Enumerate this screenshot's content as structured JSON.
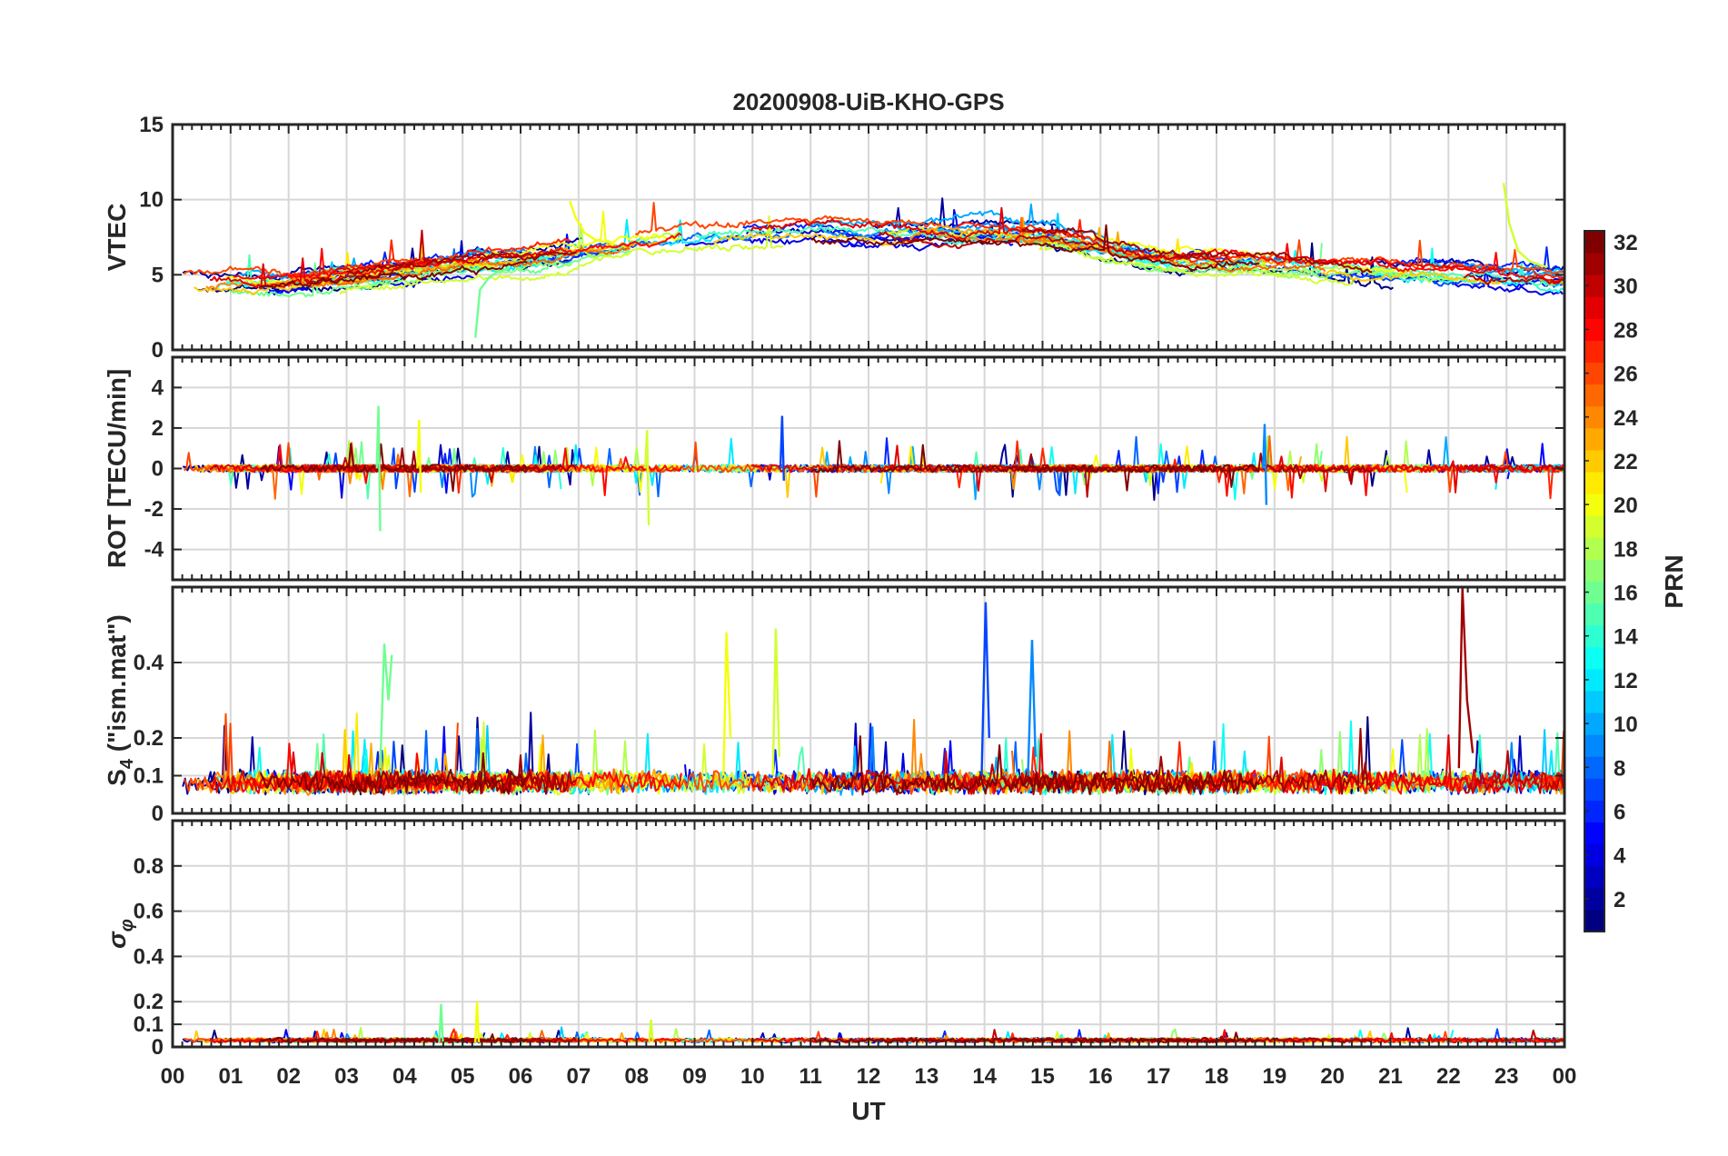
{
  "chart_data": {
    "type": "line",
    "title": "20200908-UiB-KHO-GPS",
    "xlabel": "UT",
    "x_ticks": [
      "00",
      "01",
      "02",
      "03",
      "04",
      "05",
      "06",
      "07",
      "08",
      "09",
      "10",
      "11",
      "12",
      "13",
      "14",
      "15",
      "16",
      "17",
      "18",
      "19",
      "20",
      "21",
      "22",
      "23",
      "00"
    ],
    "xlim": [
      0,
      24
    ],
    "grid": true,
    "panels": [
      {
        "name": "vtec",
        "ylabel": "VTEC",
        "ylim": [
          0,
          15
        ],
        "y_ticks": [
          0,
          5,
          10,
          15
        ],
        "y_tick_labels": [
          "0",
          "5",
          "10",
          "15"
        ],
        "profile": [
          [
            0,
            4.4
          ],
          [
            2,
            4.3
          ],
          [
            4,
            5.1
          ],
          [
            6,
            5.9
          ],
          [
            8,
            7.0
          ],
          [
            10,
            7.6
          ],
          [
            12,
            7.5
          ],
          [
            14,
            7.6
          ],
          [
            15,
            7.4
          ],
          [
            17,
            5.9
          ],
          [
            19,
            5.6
          ],
          [
            21,
            5.0
          ],
          [
            24,
            4.4
          ]
        ],
        "noise": 0.5,
        "spike_rate": 0.005,
        "spike_amp": 1.4,
        "annotations": [
          {
            "note": "PRN 16 arc rising from 0.8 at 05:15",
            "x": [
              5.22,
              5.3,
              5.45,
              5.6,
              5.8
            ],
            "y": [
              0.8,
              4.0,
              4.8,
              5.2,
              5.4
            ]
          },
          {
            "note": "PRN 20 arc starting near 9.9 at 06:50",
            "x": [
              6.85,
              6.95,
              7.1,
              7.3,
              7.6
            ],
            "y": [
              9.9,
              8.8,
              7.8,
              7.3,
              7.1
            ]
          },
          {
            "note": "PRN 19 arc starting near 11.1 at 22:55",
            "x": [
              22.95,
              23.05,
              23.2,
              23.4,
              23.7
            ],
            "y": [
              11.1,
              8.4,
              6.6,
              5.9,
              5.5
            ]
          }
        ]
      },
      {
        "name": "rot",
        "ylabel": "ROT [TECU/min]",
        "ylim": [
          -5.5,
          5.5
        ],
        "y_ticks": [
          -4,
          -2,
          0,
          2,
          4
        ],
        "y_tick_labels": [
          "-4",
          "-2",
          "0",
          "2",
          "4"
        ],
        "profile": [
          [
            0,
            0
          ],
          [
            24,
            0
          ]
        ],
        "noise": 0.18,
        "spike_rate": 0.02,
        "spike_amp": 1.0,
        "annotations": [
          {
            "note": "spike near 03:35",
            "x": [
              3.52,
              3.55,
              3.58
            ],
            "y": [
              0,
              3.1,
              -3.1
            ]
          },
          {
            "note": "spike near 04:25",
            "x": [
              4.22,
              4.25,
              4.28
            ],
            "y": [
              0,
              2.4,
              -1.2
            ]
          },
          {
            "note": "spike near 08:20",
            "x": [
              8.15,
              8.18,
              8.21
            ],
            "y": [
              0,
              1.9,
              -2.8
            ]
          },
          {
            "note": "spike near 10:30",
            "x": [
              10.48,
              10.51,
              10.54
            ],
            "y": [
              0,
              2.6,
              -0.6
            ]
          },
          {
            "note": "spike near 18:50",
            "x": [
              18.8,
              18.83,
              18.86
            ],
            "y": [
              0,
              2.2,
              -1.8
            ]
          }
        ]
      },
      {
        "name": "s4",
        "ylabel": "S4 (\"ism.mat\")",
        "ylim": [
          0,
          0.6
        ],
        "y_ticks": [
          0,
          0.1,
          0.2,
          0.4
        ],
        "y_tick_labels": [
          "0",
          "0.1",
          "0.2",
          "0.4"
        ],
        "profile": [
          [
            0,
            0.08
          ],
          [
            24,
            0.08
          ]
        ],
        "noise": 0.03,
        "spike_rate": 0.012,
        "spike_amp": 0.11,
        "annotations": [
          {
            "note": "burst near 03:40",
            "x": [
              3.58,
              3.65,
              3.72,
              3.78
            ],
            "y": [
              0.12,
              0.45,
              0.3,
              0.42
            ]
          },
          {
            "note": "burst near 09:35",
            "x": [
              9.5,
              9.55,
              9.62
            ],
            "y": [
              0.1,
              0.48,
              0.2
            ]
          },
          {
            "note": "burst near 10:25",
            "x": [
              10.35,
              10.4,
              10.46
            ],
            "y": [
              0.1,
              0.49,
              0.15
            ]
          },
          {
            "note": "burst near 14:05",
            "x": [
              13.95,
              14.02,
              14.08
            ],
            "y": [
              0.1,
              0.56,
              0.2
            ]
          },
          {
            "note": "burst near 14:50",
            "x": [
              14.75,
              14.82,
              14.88
            ],
            "y": [
              0.1,
              0.46,
              0.15
            ]
          },
          {
            "note": "burst near 22:15",
            "x": [
              22.18,
              22.24,
              22.32,
              22.42
            ],
            "y": [
              0.12,
              0.6,
              0.3,
              0.16
            ]
          }
        ]
      },
      {
        "name": "sigma-phi",
        "ylabel": "σφ",
        "ylim": [
          0,
          1
        ],
        "y_ticks": [
          0,
          0.1,
          0.2,
          0.4,
          0.6,
          0.8
        ],
        "y_tick_labels": [
          "0",
          "0.1",
          "0.2",
          "0.4",
          "0.6",
          "0.8"
        ],
        "profile": [
          [
            0,
            0.03
          ],
          [
            24,
            0.03
          ]
        ],
        "noise": 0.008,
        "spike_rate": 0.006,
        "spike_amp": 0.035,
        "annotations": [
          {
            "note": "spike near 04:35",
            "x": [
              4.6,
              4.63,
              4.66
            ],
            "y": [
              0.02,
              0.19,
              0.02
            ]
          },
          {
            "note": "spike near 05:15",
            "x": [
              5.22,
              5.25,
              5.28
            ],
            "y": [
              0.02,
              0.2,
              0.02
            ]
          },
          {
            "note": "spike near 08:15",
            "x": [
              8.22,
              8.25,
              8.28
            ],
            "y": [
              0.02,
              0.12,
              0.02
            ]
          }
        ]
      }
    ],
    "series": {
      "count": 32,
      "note": "one trace per satellite PRN 1..32, colored by jet colormap",
      "prns": [
        1,
        2,
        3,
        4,
        5,
        6,
        7,
        8,
        9,
        10,
        11,
        12,
        13,
        14,
        15,
        16,
        17,
        18,
        19,
        20,
        21,
        22,
        23,
        24,
        25,
        26,
        27,
        28,
        29,
        30,
        31,
        32
      ]
    },
    "colorbar": {
      "label": "PRN",
      "range": [
        1,
        32
      ],
      "ticks": [
        2,
        4,
        6,
        8,
        10,
        12,
        14,
        16,
        18,
        20,
        22,
        24,
        26,
        28,
        30,
        32
      ],
      "tick_labels": [
        "2",
        "4",
        "6",
        "8",
        "10",
        "12",
        "14",
        "16",
        "18",
        "20",
        "22",
        "24",
        "26",
        "28",
        "30",
        "32"
      ],
      "colormap": "jet",
      "placement": "right"
    }
  }
}
